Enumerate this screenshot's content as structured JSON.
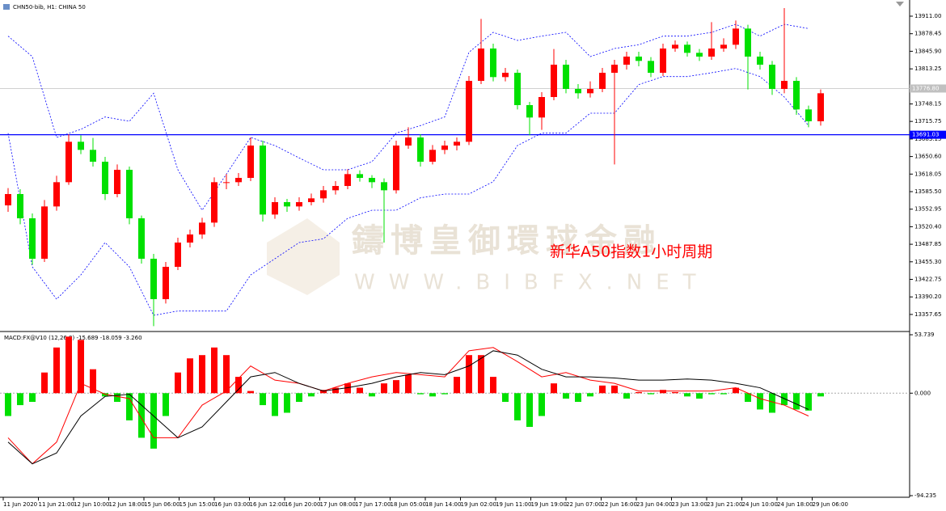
{
  "chart_data": {
    "type": "candlestick",
    "title": "CHN50-bib, H1: CHINA 50",
    "annotation": "新华A50指数1小时周期",
    "watermark": [
      "鑄博皇御環球金融",
      "WWW.BIBFX.NET"
    ],
    "up_color": "#ff0000",
    "down_color": "#00e000",
    "ylim": [
      13326,
      13941
    ],
    "yticks": [
      {
        "value": 13911,
        "label": "13911.00"
      },
      13878.45,
      {
        "value": 13845.9,
        "label": "13845.90"
      },
      13813.25,
      13748.15,
      13715.75,
      13683.15,
      {
        "value": 13650.6,
        "label": "13650.60"
      },
      13618.05,
      {
        "value": 13585.5,
        "label": "13585.50"
      },
      13552.95,
      {
        "value": 13520.4,
        "label": "13520.40"
      },
      13487.85,
      {
        "value": 13455.3,
        "label": "13455.30"
      },
      13422.75,
      {
        "value": 13390.2,
        "label": "13390.20"
      },
      13357.65
    ],
    "levels": [
      {
        "value": 13691.03,
        "label": "13691.03",
        "color": "#0000ff"
      },
      {
        "value": 13776.8,
        "label": "13776.80",
        "color": "#c0c0c0"
      }
    ],
    "x_labels": [
      "11 Jun 2020",
      "11 Jun 21:00",
      "12 Jun 10:00",
      "12 Jun 18:00",
      "15 Jun 06:00",
      "15 Jun 15:00",
      "16 Jun 03:00",
      "16 Jun 12:00",
      "16 Jun 20:00",
      "17 Jun 08:00",
      "17 Jun 17:00",
      "18 Jun 05:00",
      "18 Jun 14:00",
      "19 Jun 02:00",
      "19 Jun 11:00",
      "19 Jun 19:00",
      "22 Jun 07:00",
      "22 Jun 16:00",
      "23 Jun 04:00",
      "23 Jun 13:00",
      "23 Jun 21:00",
      "24 Jun 10:00",
      "24 Jun 18:00",
      "29 Jun 06:00"
    ],
    "candles": [
      [
        13560,
        13592,
        13548,
        13581
      ],
      [
        13581,
        13590,
        13525,
        13536
      ],
      [
        13536,
        13545,
        13450,
        13461
      ],
      [
        13461,
        13570,
        13455,
        13558
      ],
      [
        13558,
        13615,
        13550,
        13603
      ],
      [
        13603,
        13692,
        13598,
        13678
      ],
      [
        13678,
        13690,
        13655,
        13663
      ],
      [
        13663,
        13685,
        13632,
        13641
      ],
      [
        13641,
        13650,
        13570,
        13581
      ],
      [
        13581,
        13636,
        13575,
        13626
      ],
      [
        13626,
        13632,
        13525,
        13536
      ],
      [
        13536,
        13541,
        13452,
        13461
      ],
      [
        13461,
        13470,
        13336,
        13386
      ],
      [
        13386,
        13455,
        13378,
        13446
      ],
      [
        13446,
        13500,
        13440,
        13491
      ],
      [
        13491,
        13515,
        13482,
        13506
      ],
      [
        13506,
        13537,
        13498,
        13528
      ],
      [
        13528,
        13612,
        13520,
        13603
      ],
      [
        13603,
        13618,
        13590,
        13603
      ],
      [
        13603,
        13620,
        13596,
        13611
      ],
      [
        13611,
        13686,
        13605,
        13671
      ],
      [
        13671,
        13680,
        13530,
        13543
      ],
      [
        13543,
        13575,
        13535,
        13566
      ],
      [
        13566,
        13572,
        13548,
        13558
      ],
      [
        13558,
        13575,
        13550,
        13566
      ],
      [
        13566,
        13582,
        13560,
        13573
      ],
      [
        13573,
        13596,
        13565,
        13588
      ],
      [
        13588,
        13605,
        13580,
        13596
      ],
      [
        13596,
        13627,
        13590,
        13618
      ],
      [
        13618,
        13625,
        13604,
        13611
      ],
      [
        13611,
        13616,
        13592,
        13603
      ],
      [
        13603,
        13610,
        13491,
        13588
      ],
      [
        13588,
        13680,
        13582,
        13671
      ],
      [
        13671,
        13705,
        13665,
        13686
      ],
      [
        13686,
        13692,
        13632,
        13641
      ],
      [
        13641,
        13672,
        13636,
        13663
      ],
      [
        13663,
        13680,
        13655,
        13671
      ],
      [
        13671,
        13686,
        13662,
        13678
      ],
      [
        13678,
        13800,
        13672,
        13791
      ],
      [
        13791,
        13906,
        13785,
        13851
      ],
      [
        13851,
        13860,
        13790,
        13798
      ],
      [
        13798,
        13815,
        13790,
        13806
      ],
      [
        13806,
        13812,
        13738,
        13746
      ],
      [
        13746,
        13752,
        13690,
        13723
      ],
      [
        13723,
        13770,
        13700,
        13761
      ],
      [
        13761,
        13850,
        13755,
        13821
      ],
      [
        13821,
        13830,
        13768,
        13776
      ],
      [
        13776,
        13785,
        13758,
        13768
      ],
      [
        13768,
        13790,
        13760,
        13776
      ],
      [
        13776,
        13815,
        13770,
        13806
      ],
      [
        13806,
        13830,
        13636,
        13821
      ],
      [
        13821,
        13845,
        13812,
        13836
      ],
      [
        13836,
        13845,
        13818,
        13828
      ],
      [
        13828,
        13835,
        13798,
        13806
      ],
      [
        13806,
        13860,
        13800,
        13851
      ],
      [
        13851,
        13866,
        13845,
        13858
      ],
      [
        13858,
        13864,
        13836,
        13843
      ],
      [
        13843,
        13850,
        13828,
        13836
      ],
      [
        13836,
        13900,
        13830,
        13851
      ],
      [
        13851,
        13870,
        13845,
        13858
      ],
      [
        13858,
        13903,
        13850,
        13888
      ],
      [
        13888,
        13895,
        13775,
        13836
      ],
      [
        13836,
        13845,
        13812,
        13821
      ],
      [
        13821,
        13828,
        13765,
        13776
      ],
      [
        13776,
        13926,
        13768,
        13791
      ],
      [
        13791,
        13798,
        13728,
        13738
      ],
      [
        13738,
        13745,
        13705,
        13716
      ],
      [
        13716,
        13775,
        13708,
        13768
      ]
    ],
    "band_color": "#0000ff",
    "band_upper": [
      13874,
      13836,
      13686,
      13701,
      13724,
      13716,
      13768,
      13626,
      13551,
      13618,
      13686,
      13671,
      13648,
      13626,
      13626,
      13641,
      13694,
      13708,
      13724,
      13844,
      13881,
      13866,
      13874,
      13881,
      13836,
      13851,
      13858,
      13874,
      13874,
      13881,
      13896,
      13874,
      13896,
      13888
    ],
    "band_lower": [
      13694,
      13446,
      13386,
      13431,
      13491,
      13446,
      13356,
      13364,
      13364,
      13364,
      13431,
      13461,
      13491,
      13498,
      13536,
      13551,
      13551,
      13574,
      13581,
      13581,
      13604,
      13671,
      13694,
      13694,
      13731,
      13731,
      13784,
      13799,
      13799,
      13806,
      13814,
      13799,
      13761,
      13708
    ],
    "macd": {
      "label": "MACD:FX@V10 (12,26,9) -15.689 -18.059 -3.260",
      "ylim": [
        -94.235,
        53.739
      ],
      "yticks": [
        53.739,
        {
          "value": 0,
          "label": "0.000"
        },
        -94.235
      ],
      "histogram": [
        -21,
        -11,
        -8,
        19,
        42,
        52,
        49,
        22,
        -3,
        -8,
        -25,
        -41,
        -51,
        -21,
        19,
        32,
        35,
        42,
        35,
        15,
        2,
        -11,
        -21,
        -18,
        -8,
        -3,
        3,
        5,
        9,
        5,
        -3,
        9,
        12,
        17,
        -1,
        -3,
        -1,
        15,
        35,
        35,
        15,
        -8,
        -25,
        -31,
        -21,
        9,
        -5,
        -8,
        -3,
        7,
        7,
        -5,
        1,
        -1,
        3,
        1,
        -3,
        -5,
        -1,
        -1,
        5,
        -8,
        -15,
        -18,
        -11,
        -15,
        -16,
        -3
      ],
      "macd_line": [
        -41,
        -65,
        -45,
        9,
        -1,
        -5,
        -41,
        -41,
        -11,
        2,
        25,
        12,
        9,
        2,
        9,
        15,
        19,
        17,
        15,
        39,
        42,
        29,
        15,
        19,
        12,
        9,
        2,
        2,
        2,
        2,
        5,
        -5,
        -11,
        -21
      ],
      "signal_line": [
        -45,
        -65,
        -55,
        -21,
        -3,
        -1,
        -21,
        -41,
        -31,
        -8,
        15,
        19,
        9,
        2,
        5,
        9,
        15,
        19,
        17,
        25,
        39,
        35,
        22,
        15,
        15,
        14,
        12,
        12,
        13,
        12,
        9,
        5,
        -5,
        -15
      ],
      "line_colors": [
        "#ff0000",
        "#000000"
      ]
    }
  }
}
